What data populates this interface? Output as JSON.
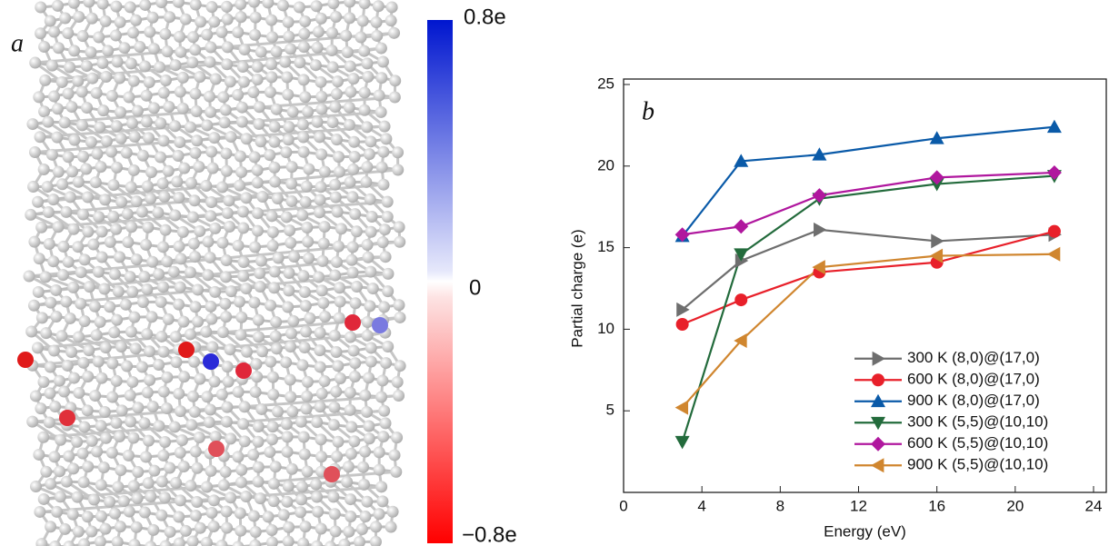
{
  "panel_a": {
    "label": "a",
    "colorbar_labels": [
      "0.8e",
      "0",
      "−0.8e"
    ]
  },
  "chart_data": {
    "type": "line",
    "panel_label": "b",
    "x_label": "Energy (eV)",
    "y_label": "Partial charge (e)",
    "x": [
      3,
      6,
      10,
      16,
      22
    ],
    "xlim": [
      0,
      24
    ],
    "xticks": [
      0,
      4,
      8,
      12,
      16,
      20,
      24
    ],
    "ylim": [
      0,
      25
    ],
    "yticks": [
      5,
      10,
      15,
      20,
      25
    ],
    "legend": "lower right",
    "series": [
      {
        "name": "300 K (8,0)@(17,0)",
        "color": "#6e6e6e",
        "marker": "triangle-right",
        "values": [
          11.2,
          14.2,
          16.1,
          15.4,
          15.8
        ]
      },
      {
        "name": "600 K (8,0)@(17,0)",
        "color": "#e8202a",
        "marker": "circle",
        "values": [
          10.3,
          11.8,
          13.5,
          14.1,
          16.0
        ]
      },
      {
        "name": "900 K (8,0)@(17,0)",
        "color": "#0a5aa8",
        "marker": "triangle-up",
        "values": [
          15.7,
          20.3,
          20.7,
          21.7,
          22.4
        ]
      },
      {
        "name": "300 K (5,5)@(10,10)",
        "color": "#236b3c",
        "marker": "triangle-down",
        "values": [
          3.1,
          14.6,
          18.0,
          18.9,
          19.4
        ]
      },
      {
        "name": "600 K (5,5)@(10,10)",
        "color": "#b0179e",
        "marker": "diamond",
        "values": [
          15.8,
          16.3,
          18.2,
          19.3,
          19.6
        ]
      },
      {
        "name": "900 K (5,5)@(10,10)",
        "color": "#d0862f",
        "marker": "triangle-left",
        "values": [
          5.2,
          9.3,
          13.8,
          14.5,
          14.6
        ]
      }
    ]
  }
}
